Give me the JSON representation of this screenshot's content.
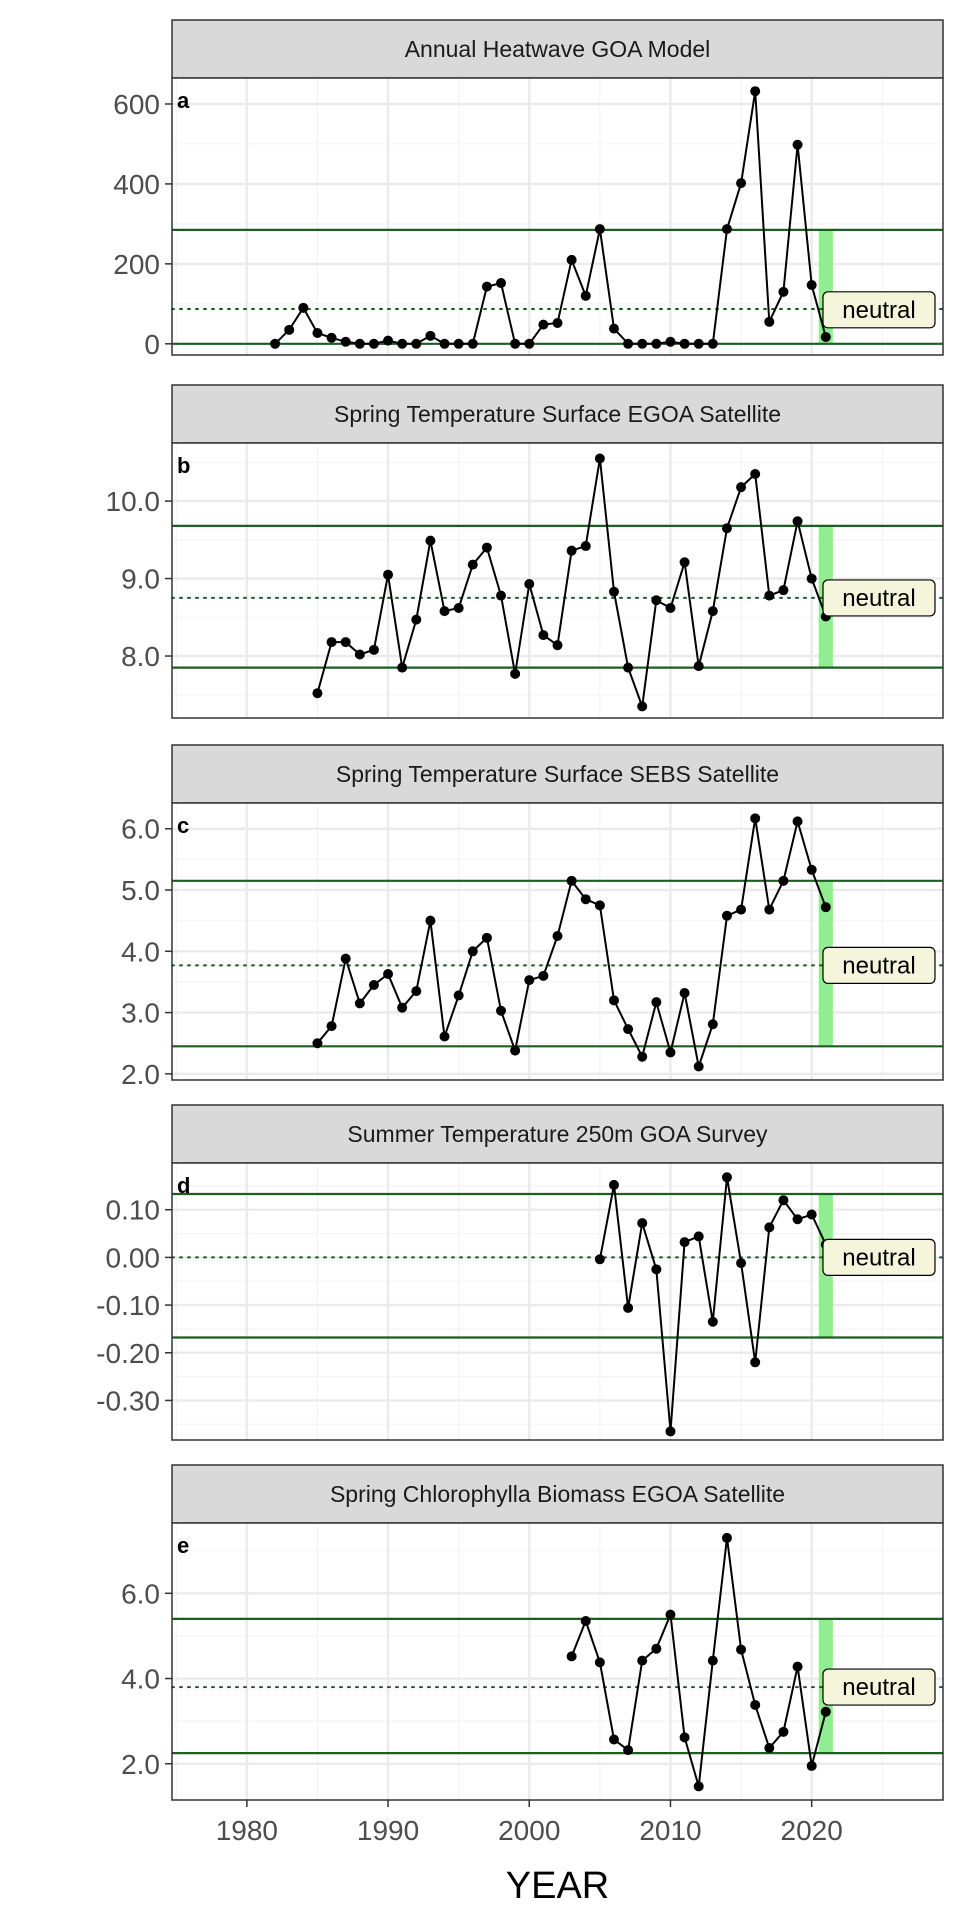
{
  "chart_data": {
    "type": "line",
    "x_axis": {
      "title": "YEAR",
      "range": [
        1974.7,
        2029.3
      ],
      "ticks": [
        1980,
        1990,
        2000,
        2010,
        2020
      ],
      "tick_labels": [
        "1980",
        "1990",
        "2000",
        "2010",
        "2020"
      ]
    },
    "status_label": "neutral",
    "highlight_year": 2021,
    "grid": true,
    "panels": [
      {
        "tag": "a",
        "title": "Annual Heatwave GOA Model",
        "ylim": [
          -28,
          665
        ],
        "y_ticks": [
          0,
          200,
          400,
          600
        ],
        "y_tick_labels": [
          "0",
          "200",
          "400",
          "600"
        ],
        "mean": 87,
        "upper_sd": 285,
        "lower_sd": 0,
        "label_value": 85,
        "x": [
          1982,
          1983,
          1984,
          1985,
          1986,
          1987,
          1988,
          1989,
          1990,
          1991,
          1992,
          1993,
          1994,
          1995,
          1996,
          1997,
          1998,
          1999,
          2000,
          2001,
          2002,
          2003,
          2004,
          2005,
          2006,
          2007,
          2008,
          2009,
          2010,
          2011,
          2012,
          2013,
          2014,
          2015,
          2016,
          2017,
          2018,
          2019,
          2020,
          2021
        ],
        "y": [
          0,
          35,
          90,
          27,
          15,
          5,
          0,
          0,
          8,
          0,
          0,
          20,
          0,
          0,
          0,
          143,
          152,
          0,
          0,
          48,
          52,
          210,
          120,
          287,
          38,
          0,
          0,
          0,
          5,
          0,
          0,
          0,
          287,
          402,
          632,
          55,
          130,
          498,
          147,
          17
        ]
      },
      {
        "tag": "b",
        "title": "Spring Temperature Surface EGOA Satellite",
        "ylim": [
          7.2,
          10.75
        ],
        "y_ticks": [
          8.0,
          9.0,
          10.0
        ],
        "y_tick_labels": [
          "8.0",
          "9.0",
          "10.0"
        ],
        "mean": 8.75,
        "upper_sd": 9.68,
        "lower_sd": 7.85,
        "label_value": 8.75,
        "x": [
          1985,
          1986,
          1987,
          1988,
          1989,
          1990,
          1991,
          1992,
          1993,
          1994,
          1995,
          1996,
          1997,
          1998,
          1999,
          2000,
          2001,
          2002,
          2003,
          2004,
          2005,
          2006,
          2007,
          2008,
          2009,
          2010,
          2011,
          2012,
          2013,
          2014,
          2015,
          2016,
          2017,
          2018,
          2019,
          2020,
          2021
        ],
        "y": [
          7.52,
          8.18,
          8.18,
          8.02,
          8.08,
          9.05,
          7.85,
          8.47,
          9.49,
          8.58,
          8.62,
          9.18,
          9.4,
          8.78,
          7.77,
          8.93,
          8.27,
          8.14,
          9.36,
          9.42,
          10.55,
          8.83,
          7.85,
          7.35,
          8.72,
          8.62,
          9.21,
          7.87,
          8.58,
          9.65,
          10.18,
          10.35,
          8.78,
          8.85,
          9.74,
          9.0,
          8.51
        ]
      },
      {
        "tag": "c",
        "title": "Spring Temperature Surface SEBS Satellite",
        "ylim": [
          1.9,
          6.42
        ],
        "y_ticks": [
          2.0,
          3.0,
          4.0,
          5.0,
          6.0
        ],
        "y_tick_labels": [
          "2.0",
          "3.0",
          "4.0",
          "5.0",
          "6.0"
        ],
        "mean": 3.77,
        "upper_sd": 5.15,
        "lower_sd": 2.45,
        "label_value": 3.77,
        "x": [
          1985,
          1986,
          1987,
          1988,
          1989,
          1990,
          1991,
          1992,
          1993,
          1994,
          1995,
          1996,
          1997,
          1998,
          1999,
          2000,
          2001,
          2002,
          2003,
          2004,
          2005,
          2006,
          2007,
          2008,
          2009,
          2010,
          2011,
          2012,
          2013,
          2014,
          2015,
          2016,
          2017,
          2018,
          2019,
          2020,
          2021
        ],
        "y": [
          2.5,
          2.78,
          3.88,
          3.15,
          3.45,
          3.63,
          3.08,
          3.35,
          4.5,
          2.61,
          3.28,
          4.0,
          4.22,
          3.03,
          2.38,
          3.53,
          3.6,
          4.25,
          5.15,
          4.85,
          4.75,
          3.2,
          2.73,
          2.28,
          3.17,
          2.35,
          3.32,
          2.12,
          2.81,
          4.58,
          4.68,
          6.17,
          4.68,
          5.15,
          6.12,
          5.33,
          4.72
        ]
      },
      {
        "tag": "d",
        "title": "Summer Temperature 250m GOA Survey",
        "ylim": [
          -0.383,
          0.198
        ],
        "y_ticks": [
          -0.3,
          -0.2,
          -0.1,
          0.0,
          0.1
        ],
        "y_tick_labels": [
          "-0.30",
          "-0.20",
          "-0.10",
          "0.00",
          "0.10"
        ],
        "mean": 0.0,
        "upper_sd": 0.133,
        "lower_sd": -0.168,
        "label_value": 0.0,
        "x": [
          2005,
          2006,
          2007,
          2008,
          2009,
          2010,
          2011,
          2012,
          2013,
          2014,
          2015,
          2016,
          2017,
          2018,
          2019,
          2020,
          2021
        ],
        "y": [
          -0.004,
          0.152,
          -0.106,
          0.072,
          -0.025,
          -0.365,
          0.032,
          0.044,
          -0.135,
          0.168,
          -0.012,
          -0.22,
          0.063,
          0.12,
          0.08,
          0.09,
          0.027
        ]
      },
      {
        "tag": "e",
        "title": "Spring Chlorophylla Biomass EGOA Satellite",
        "ylim": [
          1.15,
          7.65
        ],
        "y_ticks": [
          2.0,
          4.0,
          6.0
        ],
        "y_tick_labels": [
          "2.0",
          "4.0",
          "6.0"
        ],
        "mean": 3.8,
        "upper_sd": 5.4,
        "lower_sd": 2.25,
        "label_value": 3.8,
        "x": [
          2003,
          2004,
          2005,
          2006,
          2007,
          2008,
          2009,
          2010,
          2011,
          2012,
          2013,
          2014,
          2015,
          2016,
          2017,
          2018,
          2019,
          2020,
          2021
        ],
        "y": [
          4.52,
          5.35,
          4.38,
          2.57,
          2.32,
          4.42,
          4.7,
          5.5,
          2.62,
          1.47,
          4.42,
          7.3,
          4.68,
          3.38,
          2.37,
          2.75,
          4.28,
          1.95,
          3.22
        ]
      }
    ]
  },
  "colors": {
    "sd_line": "#1b5e20",
    "highlight_band": "#90ee90",
    "series": "#000000",
    "strip_fill": "#d9d9d9",
    "grid_major": "#ebebeb",
    "grid_minor": "#f4f4f4",
    "label_fill": "#f5f5dc"
  }
}
